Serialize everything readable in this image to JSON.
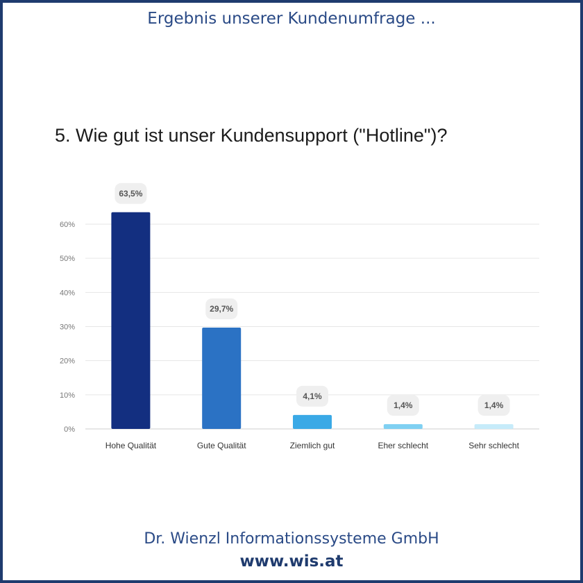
{
  "header": {
    "title": "Ergebnis unserer Kundenumfrage ..."
  },
  "footer": {
    "company": "Dr. Wienzl Informationssysteme GmbH",
    "url": "www.wis.at"
  },
  "colors": {
    "frame": "#1f3b6e",
    "header_text": "#2a4a86"
  },
  "chart_data": {
    "type": "bar",
    "title": "5. Wie gut ist unser Kundensupport (\"Hotline\")?",
    "categories": [
      "Hohe Qualität",
      "Gute Qualität",
      "Ziemlich gut",
      "Eher schlecht",
      "Sehr schlecht"
    ],
    "values": [
      63.5,
      29.7,
      4.1,
      1.4,
      1.4
    ],
    "data_labels": [
      "63,5%",
      "29,7%",
      "4,1%",
      "1,4%",
      "1,4%"
    ],
    "bar_colors": [
      "#132f80",
      "#2b72c4",
      "#3aa9e6",
      "#7fd0f2",
      "#c6ebfa"
    ],
    "ylim": [
      0,
      60
    ],
    "yticks": [
      0,
      10,
      20,
      30,
      40,
      50,
      60
    ],
    "ytick_labels": [
      "0%",
      "10%",
      "20%",
      "30%",
      "40%",
      "50%",
      "60%"
    ],
    "grid": true,
    "xlabel": "",
    "ylabel": ""
  }
}
